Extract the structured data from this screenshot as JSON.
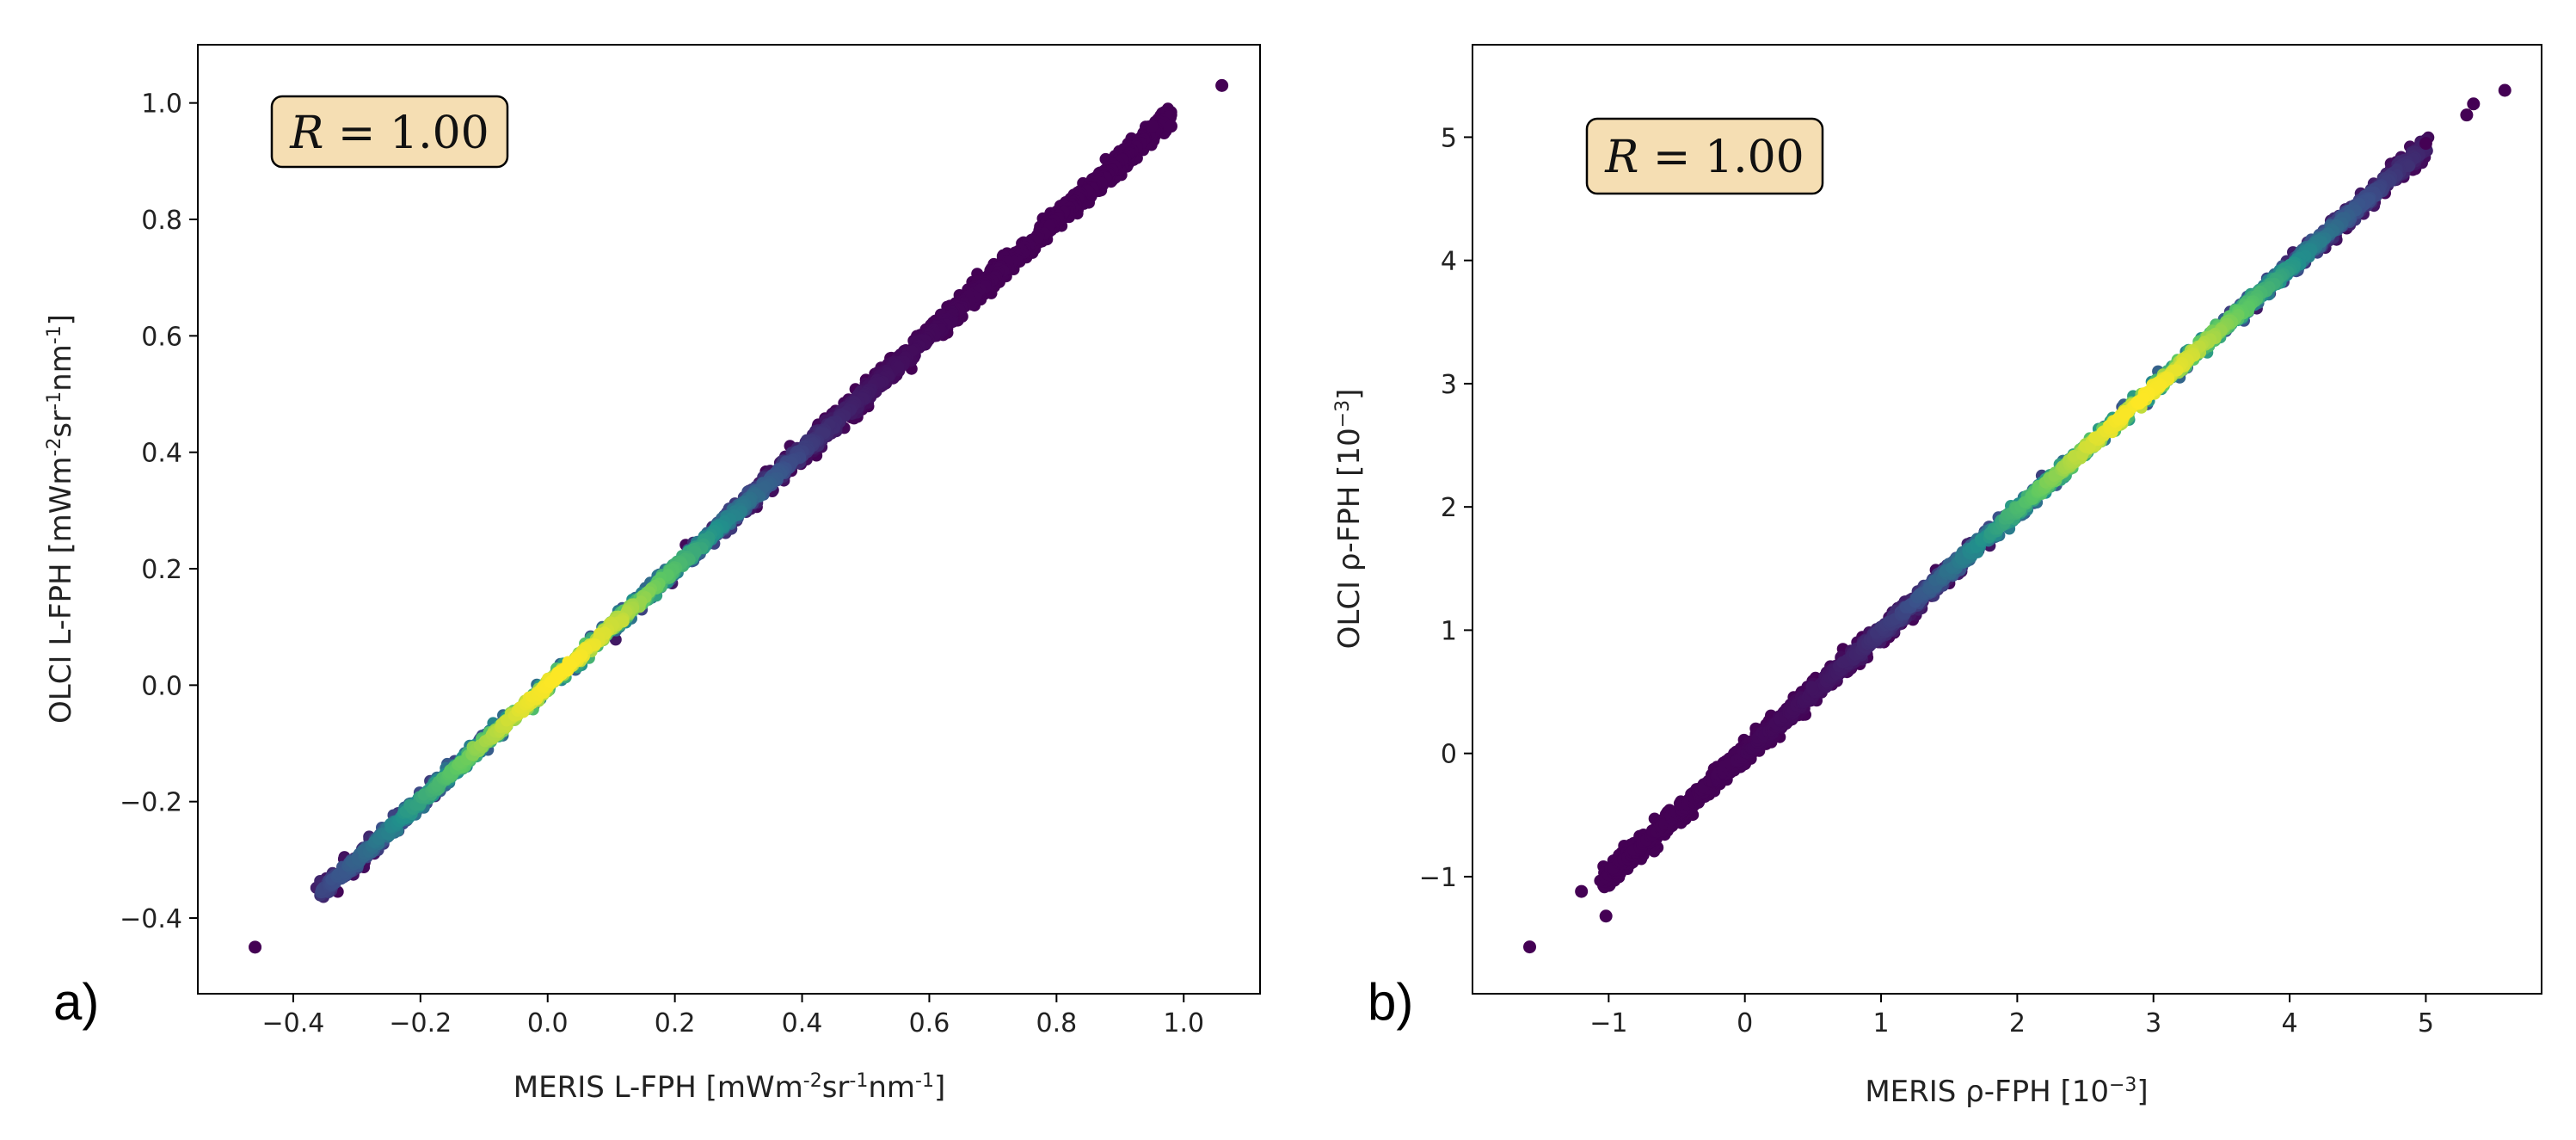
{
  "chart_data": [
    {
      "type": "scatter",
      "panel_label": "a)",
      "annotation": "R = 1.00",
      "annotation_var": "R",
      "annotation_rest": " = 1.00",
      "xlabel_parts": [
        "MERIS L-FPH [mWm",
        "-2",
        "sr",
        "-1",
        "nm",
        "-1",
        "]"
      ],
      "ylabel_parts": [
        "OLCI L-FPH [mWm",
        "-2",
        "sr",
        "-1",
        "nm",
        "-1",
        "]"
      ],
      "xlim": [
        -0.55,
        1.12
      ],
      "ylim": [
        -0.53,
        1.1
      ],
      "xticks": [
        -0.4,
        -0.2,
        0.0,
        0.2,
        0.4,
        0.6,
        0.8,
        1.0
      ],
      "xtick_labels": [
        "−0.4",
        "−0.2",
        "0.0",
        "0.2",
        "0.4",
        "0.6",
        "0.8",
        "1.0"
      ],
      "yticks": [
        -0.4,
        -0.2,
        0.0,
        0.2,
        0.4,
        0.6,
        0.8,
        1.0
      ],
      "ytick_labels": [
        "−0.4",
        "−0.2",
        "0.0",
        "0.2",
        "0.4",
        "0.6",
        "0.8",
        "1.0"
      ],
      "fit": {
        "slope": 1.0,
        "intercept": 0.0,
        "x_start": -0.36,
        "x_end": 0.98,
        "density_peak": 0.02,
        "density_width": 0.3
      },
      "outliers": [
        {
          "x": -0.46,
          "y": -0.45
        },
        {
          "x": 1.06,
          "y": 1.03
        },
        {
          "x": 0.98,
          "y": 0.96
        },
        {
          "x": 0.95,
          "y": 0.96
        }
      ]
    },
    {
      "type": "scatter",
      "panel_label": "b)",
      "annotation": "R = 1.00",
      "annotation_var": "R",
      "annotation_rest": " = 1.00",
      "xlabel_parts": [
        "MERIS ρ-FPH [10",
        "−3",
        "]"
      ],
      "ylabel_parts": [
        "OLCI ρ-FPH [10",
        "−3",
        "]"
      ],
      "xlim": [
        -2.0,
        5.85
      ],
      "ylim": [
        -1.95,
        5.75
      ],
      "xticks": [
        -1,
        0,
        1,
        2,
        3,
        4,
        5
      ],
      "xtick_labels": [
        "−1",
        "0",
        "1",
        "2",
        "3",
        "4",
        "5"
      ],
      "yticks": [
        -1,
        0,
        1,
        2,
        3,
        4,
        5
      ],
      "ytick_labels": [
        "−1",
        "0",
        "1",
        "2",
        "3",
        "4",
        "5"
      ],
      "fit": {
        "slope": 0.985,
        "intercept": 0.0,
        "x_start": -1.05,
        "x_end": 5.0,
        "density_peak": 2.9,
        "density_width": 1.4
      },
      "outliers": [
        {
          "x": -1.58,
          "y": -1.57
        },
        {
          "x": -1.2,
          "y": -1.12
        },
        {
          "x": -1.02,
          "y": -1.32
        },
        {
          "x": 5.58,
          "y": 5.38
        },
        {
          "x": 5.35,
          "y": 5.27
        },
        {
          "x": 5.3,
          "y": 5.18
        },
        {
          "x": 5.0,
          "y": 4.95
        }
      ]
    }
  ],
  "colormap": [
    "#440154",
    "#3b528b",
    "#21918c",
    "#5ec962",
    "#fde725"
  ]
}
